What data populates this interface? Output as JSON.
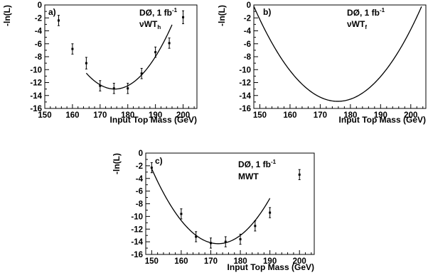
{
  "chart_data": [
    {
      "type": "scatter",
      "panel": "a)",
      "experiment": "DØ, 1 fb",
      "lumi_exp": "-1",
      "method": "νWT",
      "method_sub": "h",
      "xlabel": "Input Top Mass (GeV)",
      "ylabel": "-ln(L)",
      "xlim": [
        150,
        205
      ],
      "ylim": [
        -16,
        0
      ],
      "xticks": [
        150,
        160,
        170,
        180,
        190,
        200
      ],
      "yticks": [
        0,
        -2,
        -4,
        -6,
        -8,
        -10,
        -12,
        -14,
        -16
      ],
      "points": [
        {
          "x": 155,
          "y": -2.4,
          "err": 0.8
        },
        {
          "x": 160,
          "y": -6.8,
          "err": 0.8
        },
        {
          "x": 165,
          "y": -9.0,
          "err": 0.9
        },
        {
          "x": 170,
          "y": -12.5,
          "err": 0.8
        },
        {
          "x": 175,
          "y": -12.9,
          "err": 0.8
        },
        {
          "x": 180,
          "y": -12.9,
          "err": 0.8
        },
        {
          "x": 185,
          "y": -10.6,
          "err": 0.8
        },
        {
          "x": 190,
          "y": -7.3,
          "err": 0.8
        },
        {
          "x": 195,
          "y": -5.9,
          "err": 0.8
        },
        {
          "x": 200,
          "y": -1.9,
          "err": 1.0
        }
      ],
      "fit": {
        "xmin": 165,
        "xmax": 196,
        "center": 175.3,
        "min": -13.0,
        "curv": 0.0232
      }
    },
    {
      "type": "line",
      "panel": "b)",
      "experiment": "DØ, 1 fb",
      "lumi_exp": "-1",
      "method": "νWT",
      "method_sub": "f",
      "xlabel": "Input Top Mass (GeV)",
      "ylabel": "-ln(L)",
      "xlim": [
        148,
        205
      ],
      "ylim": [
        -16,
        0
      ],
      "xticks": [
        150,
        160,
        170,
        180,
        190,
        200
      ],
      "yticks": [
        0,
        -2,
        -4,
        -6,
        -8,
        -10,
        -12,
        -14,
        -16
      ],
      "points": [],
      "fit": {
        "xmin": 148,
        "xmax": 205,
        "center": 175.8,
        "min": -14.9,
        "curv": 0.019
      }
    },
    {
      "type": "scatter",
      "panel": "c)",
      "experiment": "DØ, 1 fb",
      "lumi_exp": "-1",
      "method": "MWT",
      "method_sub": "",
      "xlabel": "Input Top Mass (GeV)",
      "ylabel": "-ln(L)",
      "xlim": [
        148,
        205
      ],
      "ylim": [
        -16,
        0
      ],
      "xticks": [
        150,
        160,
        170,
        180,
        190,
        200
      ],
      "yticks": [
        0,
        -2,
        -4,
        -6,
        -8,
        -10,
        -12,
        -14,
        -16
      ],
      "points": [
        {
          "x": 150,
          "y": -2.3,
          "err": 0.8
        },
        {
          "x": 160,
          "y": -9.6,
          "err": 0.8
        },
        {
          "x": 165,
          "y": -13.2,
          "err": 0.8
        },
        {
          "x": 170,
          "y": -14.2,
          "err": 0.8
        },
        {
          "x": 175,
          "y": -14.0,
          "err": 0.8
        },
        {
          "x": 180,
          "y": -13.6,
          "err": 0.8
        },
        {
          "x": 185,
          "y": -11.5,
          "err": 0.8
        },
        {
          "x": 190,
          "y": -9.4,
          "err": 0.8
        },
        {
          "x": 200,
          "y": -3.4,
          "err": 0.8
        }
      ],
      "fit": {
        "xmin": 150,
        "xmax": 190,
        "center": 172.5,
        "min": -14.3,
        "curv": 0.0234
      }
    }
  ]
}
